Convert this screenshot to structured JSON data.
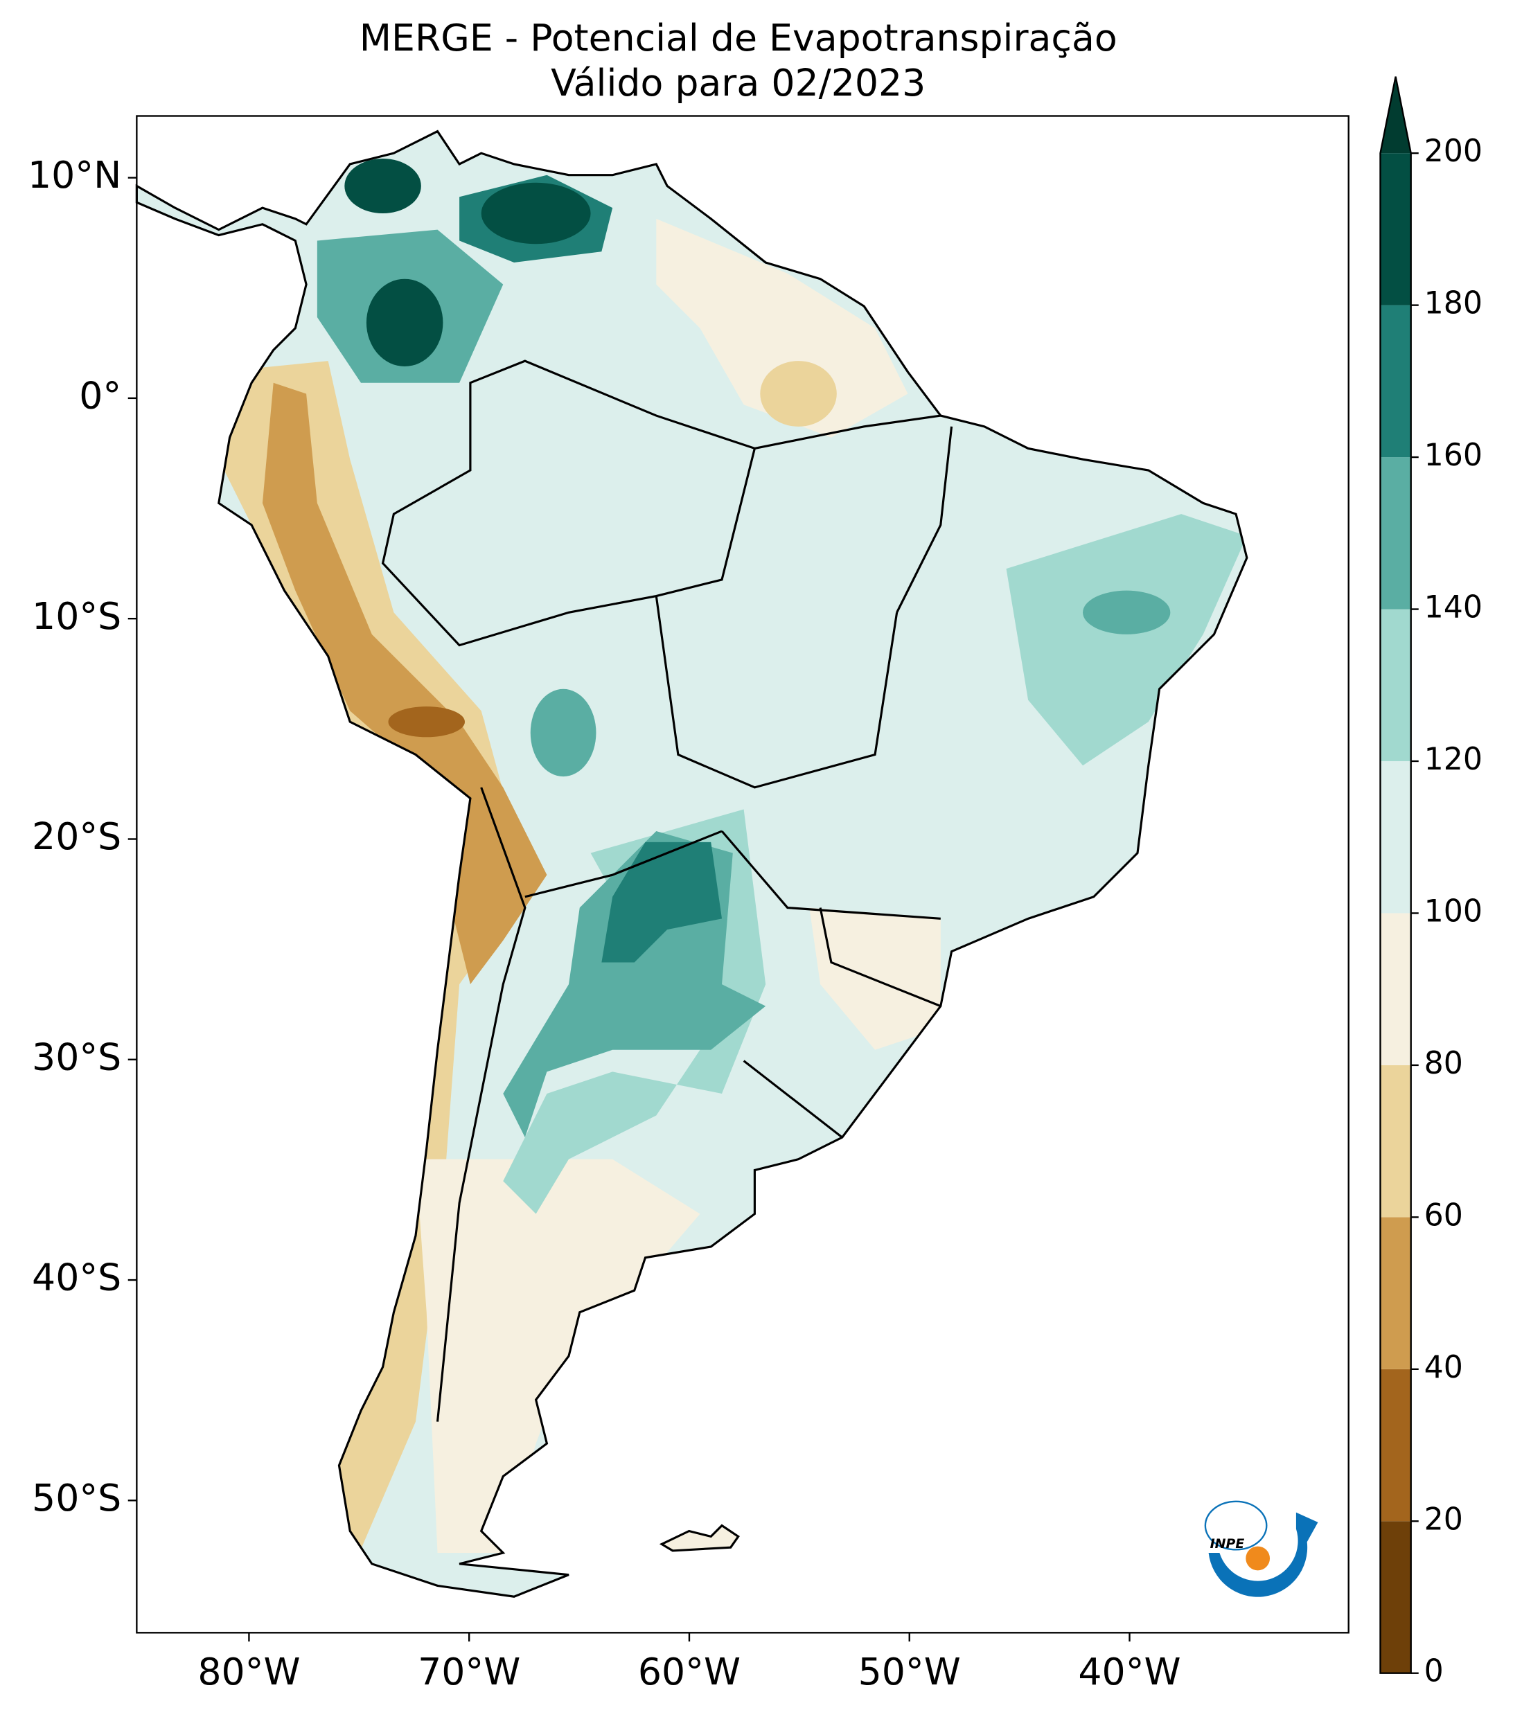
{
  "chart_data": {
    "type": "map",
    "title": [
      "MERGE - Potencial de Evapotranspiração",
      "Válido para 02/2023"
    ],
    "xlim": [
      -85.1,
      -30.05
    ],
    "ylim": [
      -56,
      12.8
    ],
    "xticks": [
      {
        "value": -80,
        "label": "80°W"
      },
      {
        "value": -70,
        "label": "70°W"
      },
      {
        "value": -60,
        "label": "60°W"
      },
      {
        "value": -50,
        "label": "50°W"
      },
      {
        "value": -40,
        "label": "40°W"
      }
    ],
    "yticks": [
      {
        "value": 10,
        "label": "10°N"
      },
      {
        "value": 0,
        "label": "0°"
      },
      {
        "value": -10,
        "label": "10°S"
      },
      {
        "value": -20,
        "label": "20°S"
      },
      {
        "value": -30,
        "label": "30°S"
      },
      {
        "value": -40,
        "label": "40°S"
      },
      {
        "value": -50,
        "label": "50°S"
      }
    ],
    "colorbar": {
      "ticks": [
        0,
        20,
        40,
        60,
        80,
        100,
        120,
        140,
        160,
        180,
        200
      ],
      "colors": [
        "#6e4009",
        "#a3651d",
        "#cf9c4f",
        "#ebd49b",
        "#f6f0e0",
        "#dcefec",
        "#a1d9cf",
        "#5aaea3",
        "#1f7f76",
        "#034f43"
      ],
      "extend_color": "#013c30"
    },
    "logo_text": "INPE"
  }
}
